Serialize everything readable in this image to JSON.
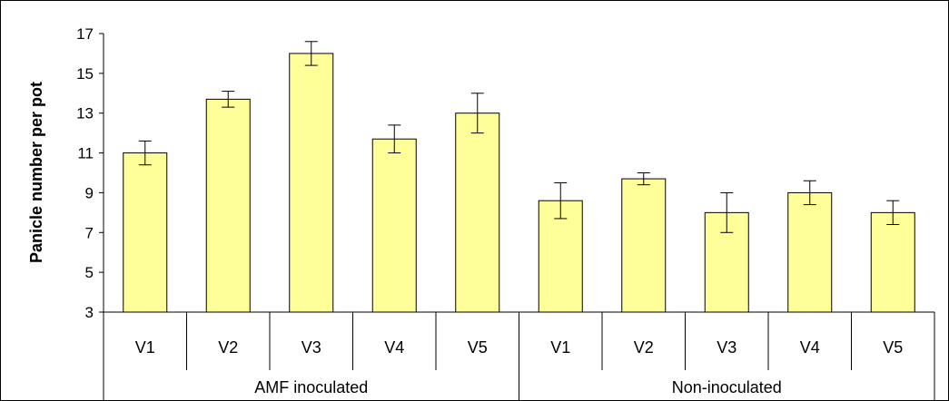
{
  "chart_data": {
    "type": "bar",
    "title": "",
    "ylabel": "Panicle number per pot",
    "xlabel": "",
    "ylim": [
      3,
      17
    ],
    "yticks": [
      3,
      5,
      7,
      9,
      11,
      13,
      15,
      17
    ],
    "groups": [
      {
        "name": "AMF inoculated",
        "categories": [
          "V1",
          "V2",
          "V3",
          "V4",
          "V5"
        ]
      },
      {
        "name": "Non-inoculated",
        "categories": [
          "V1",
          "V2",
          "V3",
          "V4",
          "V5"
        ]
      }
    ],
    "categories": [
      "V1",
      "V2",
      "V3",
      "V4",
      "V5",
      "V1",
      "V2",
      "V3",
      "V4",
      "V5"
    ],
    "values": [
      11.0,
      13.7,
      16.0,
      11.7,
      13.0,
      8.6,
      9.7,
      8.0,
      9.0,
      8.0
    ],
    "errors": [
      0.6,
      0.4,
      0.6,
      0.7,
      1.0,
      0.9,
      0.3,
      1.0,
      0.6,
      0.6
    ],
    "bar_color": "#FFFF99",
    "bar_stroke": "#000000",
    "grid": false,
    "legend": "none"
  }
}
